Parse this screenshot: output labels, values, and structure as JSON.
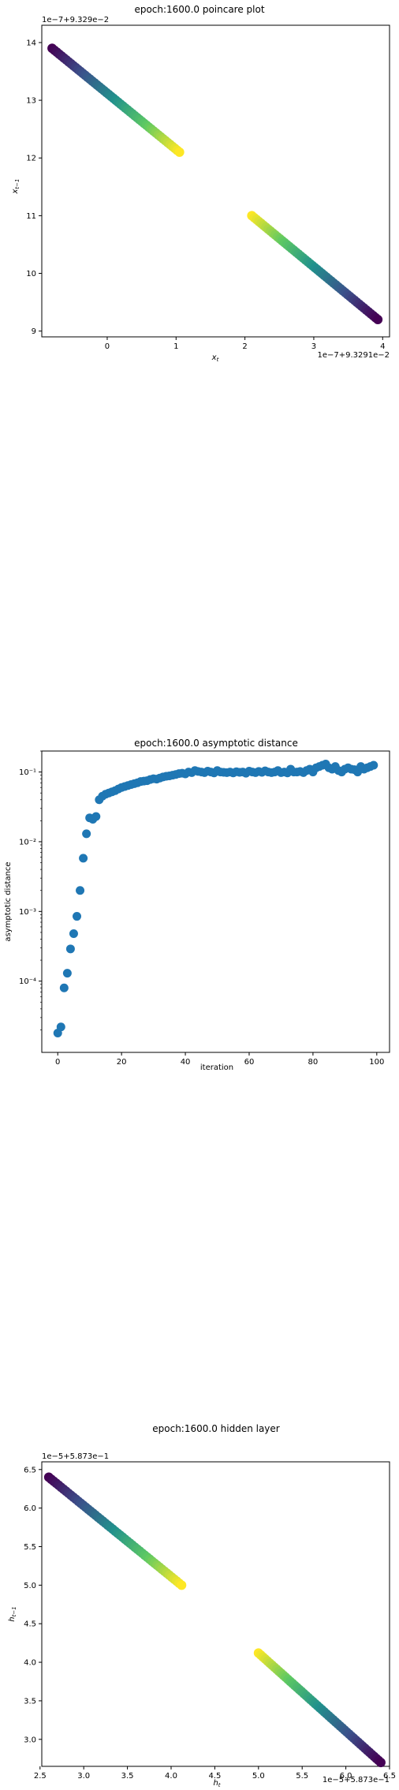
{
  "chart_data": [
    {
      "type": "scatter",
      "title": "epoch:1600.0 poincare plot",
      "xlabel": "x_t",
      "ylabel": "x_{t-1}",
      "x_offset_text": "1e−7+9.3291e−2",
      "y_offset_text": "1e−7+9.329e−2",
      "xlim": [
        -0.95,
        4.1
      ],
      "ylim": [
        8.9,
        14.3
      ],
      "x_ticks": [
        0,
        1,
        2,
        3,
        4
      ],
      "y_ticks": [
        9,
        10,
        11,
        12,
        13,
        14
      ],
      "grid": false,
      "colormap": "viridis",
      "series": [
        {
          "x_range": [
            -0.8,
            1.05
          ],
          "y_range": [
            13.9,
            12.1
          ],
          "count": 55
        },
        {
          "x_range": [
            2.1,
            3.93
          ],
          "y_range": [
            11.0,
            9.2
          ],
          "count": 55
        }
      ]
    },
    {
      "type": "scatter",
      "title": "epoch:1600.0 asymptotic distance",
      "xlabel": "iteration",
      "ylabel": "asymptotic distance",
      "yscale": "log",
      "xlim": [
        -5,
        104
      ],
      "ylim": [
        9.5e-06,
        0.2
      ],
      "x_ticks": [
        0,
        20,
        40,
        60,
        80,
        100
      ],
      "y_ticks": [
        "10⁻⁴",
        "10⁻³",
        "10⁻²",
        "10⁻¹"
      ],
      "grid": false,
      "color": "#1f77b4",
      "x": [
        0,
        1,
        2,
        3,
        4,
        5,
        6,
        7,
        8,
        9,
        10,
        11,
        12,
        13,
        14,
        15,
        16,
        17,
        18,
        19,
        20,
        21,
        22,
        23,
        24,
        25,
        26,
        27,
        28,
        29,
        30,
        31,
        32,
        33,
        34,
        35,
        36,
        37,
        38,
        39,
        40,
        41,
        42,
        43,
        44,
        45,
        46,
        47,
        48,
        49,
        50,
        51,
        52,
        53,
        54,
        55,
        56,
        57,
        58,
        59,
        60,
        61,
        62,
        63,
        64,
        65,
        66,
        67,
        68,
        69,
        70,
        71,
        72,
        73,
        74,
        75,
        76,
        77,
        78,
        79,
        80,
        81,
        82,
        83,
        84,
        85,
        86,
        87,
        88,
        89,
        90,
        91,
        92,
        93,
        94,
        95,
        96,
        97,
        98,
        99
      ],
      "y": [
        1.8e-05,
        2.2e-05,
        8e-05,
        0.00013,
        0.00029,
        0.00048,
        0.00085,
        0.002,
        0.0058,
        0.013,
        0.022,
        0.021,
        0.023,
        0.04,
        0.045,
        0.048,
        0.05,
        0.052,
        0.054,
        0.057,
        0.06,
        0.062,
        0.064,
        0.066,
        0.068,
        0.07,
        0.073,
        0.074,
        0.075,
        0.078,
        0.08,
        0.079,
        0.082,
        0.085,
        0.087,
        0.088,
        0.09,
        0.092,
        0.095,
        0.096,
        0.094,
        0.1,
        0.098,
        0.105,
        0.102,
        0.1,
        0.098,
        0.103,
        0.1,
        0.097,
        0.105,
        0.1,
        0.099,
        0.098,
        0.1,
        0.097,
        0.101,
        0.099,
        0.1,
        0.096,
        0.103,
        0.1,
        0.098,
        0.102,
        0.099,
        0.104,
        0.1,
        0.098,
        0.1,
        0.105,
        0.098,
        0.1,
        0.097,
        0.11,
        0.1,
        0.1,
        0.102,
        0.098,
        0.105,
        0.11,
        0.1,
        0.115,
        0.12,
        0.125,
        0.13,
        0.115,
        0.11,
        0.12,
        0.105,
        0.1,
        0.11,
        0.115,
        0.11,
        0.108,
        0.1,
        0.12,
        0.11,
        0.115,
        0.12,
        0.125
      ]
    },
    {
      "type": "scatter",
      "title": "epoch:1600.0 hidden layer",
      "xlabel": "h_t",
      "ylabel": "h_{t-1}",
      "x_offset_text": "1e−5+5.873e−1",
      "y_offset_text": "1e−5+5.873e−1",
      "xlim": [
        2.52,
        6.5
      ],
      "ylim": [
        2.65,
        6.6
      ],
      "x_ticks": [
        "2.5",
        "3.0",
        "3.5",
        "4.0",
        "4.5",
        "5.0",
        "5.5",
        "6.0",
        "6.5"
      ],
      "y_ticks": [
        "3.0",
        "3.5",
        "4.0",
        "4.5",
        "5.0",
        "5.5",
        "6.0",
        "6.5"
      ],
      "grid": false,
      "colormap": "viridis",
      "series": [
        {
          "x_range": [
            2.6,
            4.12
          ],
          "y_range": [
            6.4,
            5.0
          ],
          "count": 55
        },
        {
          "x_range": [
            5.0,
            6.4
          ],
          "y_range": [
            4.12,
            2.7
          ],
          "count": 55
        }
      ]
    }
  ]
}
